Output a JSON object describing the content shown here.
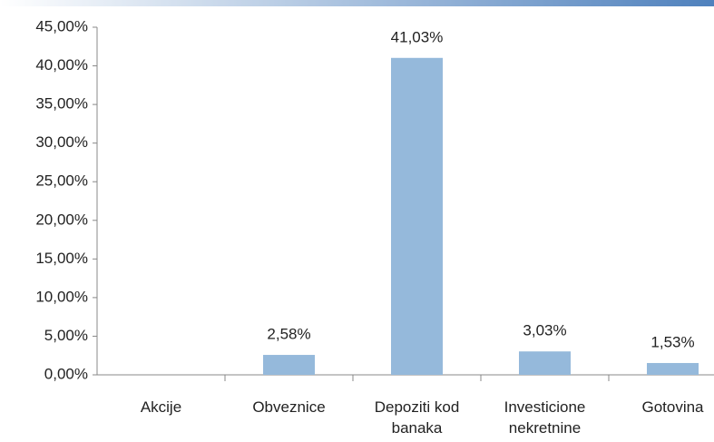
{
  "chart_data": {
    "type": "bar",
    "categories": [
      "Akcije",
      "Obveznice",
      "Depoziti kod banaka",
      "Investicione nekretnine",
      "Gotovina"
    ],
    "values": [
      0,
      2.58,
      41.03,
      3.03,
      1.53
    ],
    "value_labels": [
      null,
      "2,58%",
      "41,03%",
      "3,03%",
      "1,53%"
    ],
    "color": "#95b9db",
    "ylim": [
      0,
      45
    ],
    "yticks": [
      {
        "value": 0,
        "label": "0,00%"
      },
      {
        "value": 5,
        "label": "5,00%"
      },
      {
        "value": 10,
        "label": "10,00%"
      },
      {
        "value": 15,
        "label": "15,00%"
      },
      {
        "value": 20,
        "label": "20,00%"
      },
      {
        "value": 25,
        "label": "25,00%"
      },
      {
        "value": 30,
        "label": "30,00%"
      },
      {
        "value": 35,
        "label": "35,00%"
      },
      {
        "value": 40,
        "label": "40,00%"
      },
      {
        "value": 45,
        "label": "45,00%"
      }
    ],
    "grid": false
  }
}
